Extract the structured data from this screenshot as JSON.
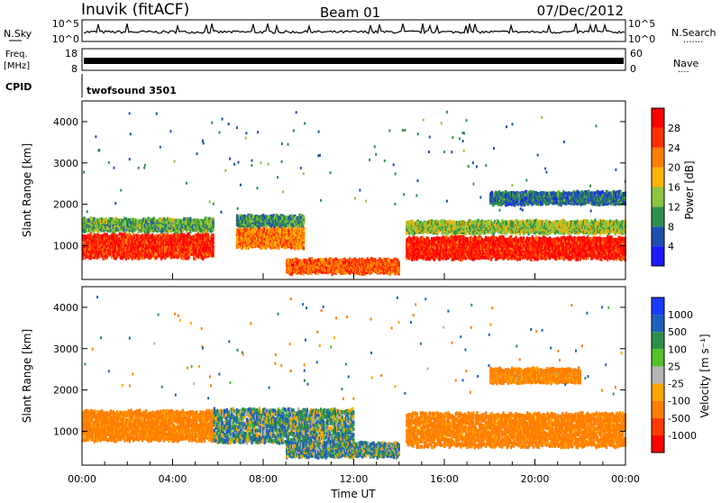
{
  "header": {
    "station": "Inuvik (fitACF)",
    "beam": "Beam 01",
    "date": "07/Dec/2012"
  },
  "aux_panels": {
    "nsky_label": "N.Sky",
    "nsky_ticks": [
      "10^5",
      "10^0"
    ],
    "nsearch_label": "N.Search",
    "nsearch_ticks": [
      "10^5",
      "10^0"
    ],
    "freq_label": "Freq.",
    "freq_unit": "[MHz]",
    "freq_ticks": [
      "18",
      "8"
    ],
    "nave_label": "Nave",
    "nave_ticks": [
      "60",
      "0"
    ],
    "cpid_label": "CPID",
    "cpid_value": "twofsound 3501"
  },
  "colors": {
    "power_scale": [
      "#1a1aff",
      "#1f4fb0",
      "#2f8f4a",
      "#8cc63f",
      "#ffb400",
      "#ff7f00",
      "#ff3000",
      "#ff0000"
    ],
    "velocity_scale": [
      "#1a3aff",
      "#1f5fbf",
      "#2f8f4a",
      "#56c02a",
      "#b4b4b4",
      "#ffa500",
      "#ff7f00",
      "#ff3b00",
      "#ff0000"
    ]
  },
  "chart_data": [
    {
      "type": "heatmap",
      "name": "power",
      "xlabel": "Time UT",
      "ylabel": "Slant Range [km]",
      "xlim": [
        "00:00",
        "24:00"
      ],
      "x_ticks": [
        "00:00",
        "04:00",
        "08:00",
        "12:00",
        "16:00",
        "20:00",
        "00:00"
      ],
      "ylim": [
        180,
        4500
      ],
      "y_ticks": [
        1000,
        2000,
        3000,
        4000
      ],
      "colorbar": {
        "label": "Power [dB]",
        "range": [
          0,
          32
        ],
        "ticks": [
          4,
          8,
          12,
          16,
          20,
          24,
          28
        ]
      },
      "regions": [
        {
          "t_start": 0.0,
          "t_end": 5.8,
          "r_center": 1050,
          "r_width": 550,
          "power": 27
        },
        {
          "t_start": 0.0,
          "t_end": 5.8,
          "r_center": 1550,
          "r_width": 250,
          "power": 12
        },
        {
          "t_start": 6.8,
          "t_end": 9.8,
          "r_center": 1250,
          "r_width": 450,
          "power": 22
        },
        {
          "t_start": 6.8,
          "t_end": 9.8,
          "r_center": 1650,
          "r_width": 200,
          "power": 10
        },
        {
          "t_start": 9.0,
          "t_end": 14.0,
          "r_center": 550,
          "r_width": 300,
          "power": 24
        },
        {
          "t_start": 14.3,
          "t_end": 24.0,
          "r_center": 1000,
          "r_width": 500,
          "power": 28
        },
        {
          "t_start": 14.3,
          "t_end": 24.0,
          "r_center": 1500,
          "r_width": 250,
          "power": 14
        },
        {
          "t_start": 18.0,
          "t_end": 24.0,
          "r_center": 2200,
          "r_width": 250,
          "power": 8
        }
      ]
    },
    {
      "type": "heatmap",
      "name": "velocity",
      "xlabel": "Time UT",
      "ylabel": "Slant Range [km]",
      "xlim": [
        "00:00",
        "24:00"
      ],
      "x_ticks": [
        "00:00",
        "04:00",
        "08:00",
        "12:00",
        "16:00",
        "20:00",
        "00:00"
      ],
      "ylim": [
        180,
        4500
      ],
      "y_ticks": [
        1000,
        2000,
        3000,
        4000
      ],
      "colorbar": {
        "label": "Velocity [m s⁻¹]",
        "levels": [
          1000,
          500,
          100,
          25,
          -25,
          -100,
          -500,
          -1000
        ]
      },
      "regions": [
        {
          "t_start": 0.0,
          "t_end": 5.8,
          "r_center": 1200,
          "r_width": 700,
          "velocity": -200
        },
        {
          "t_start": 5.8,
          "t_end": 12.0,
          "r_center": 1200,
          "r_width": 800,
          "velocity": 60
        },
        {
          "t_start": 9.0,
          "t_end": 14.0,
          "r_center": 600,
          "r_width": 300,
          "velocity": 60
        },
        {
          "t_start": 14.3,
          "t_end": 24.0,
          "r_center": 1100,
          "r_width": 800,
          "velocity": -200
        },
        {
          "t_start": 18.0,
          "t_end": 22.0,
          "r_center": 2400,
          "r_width": 300,
          "velocity": -150
        }
      ]
    }
  ]
}
